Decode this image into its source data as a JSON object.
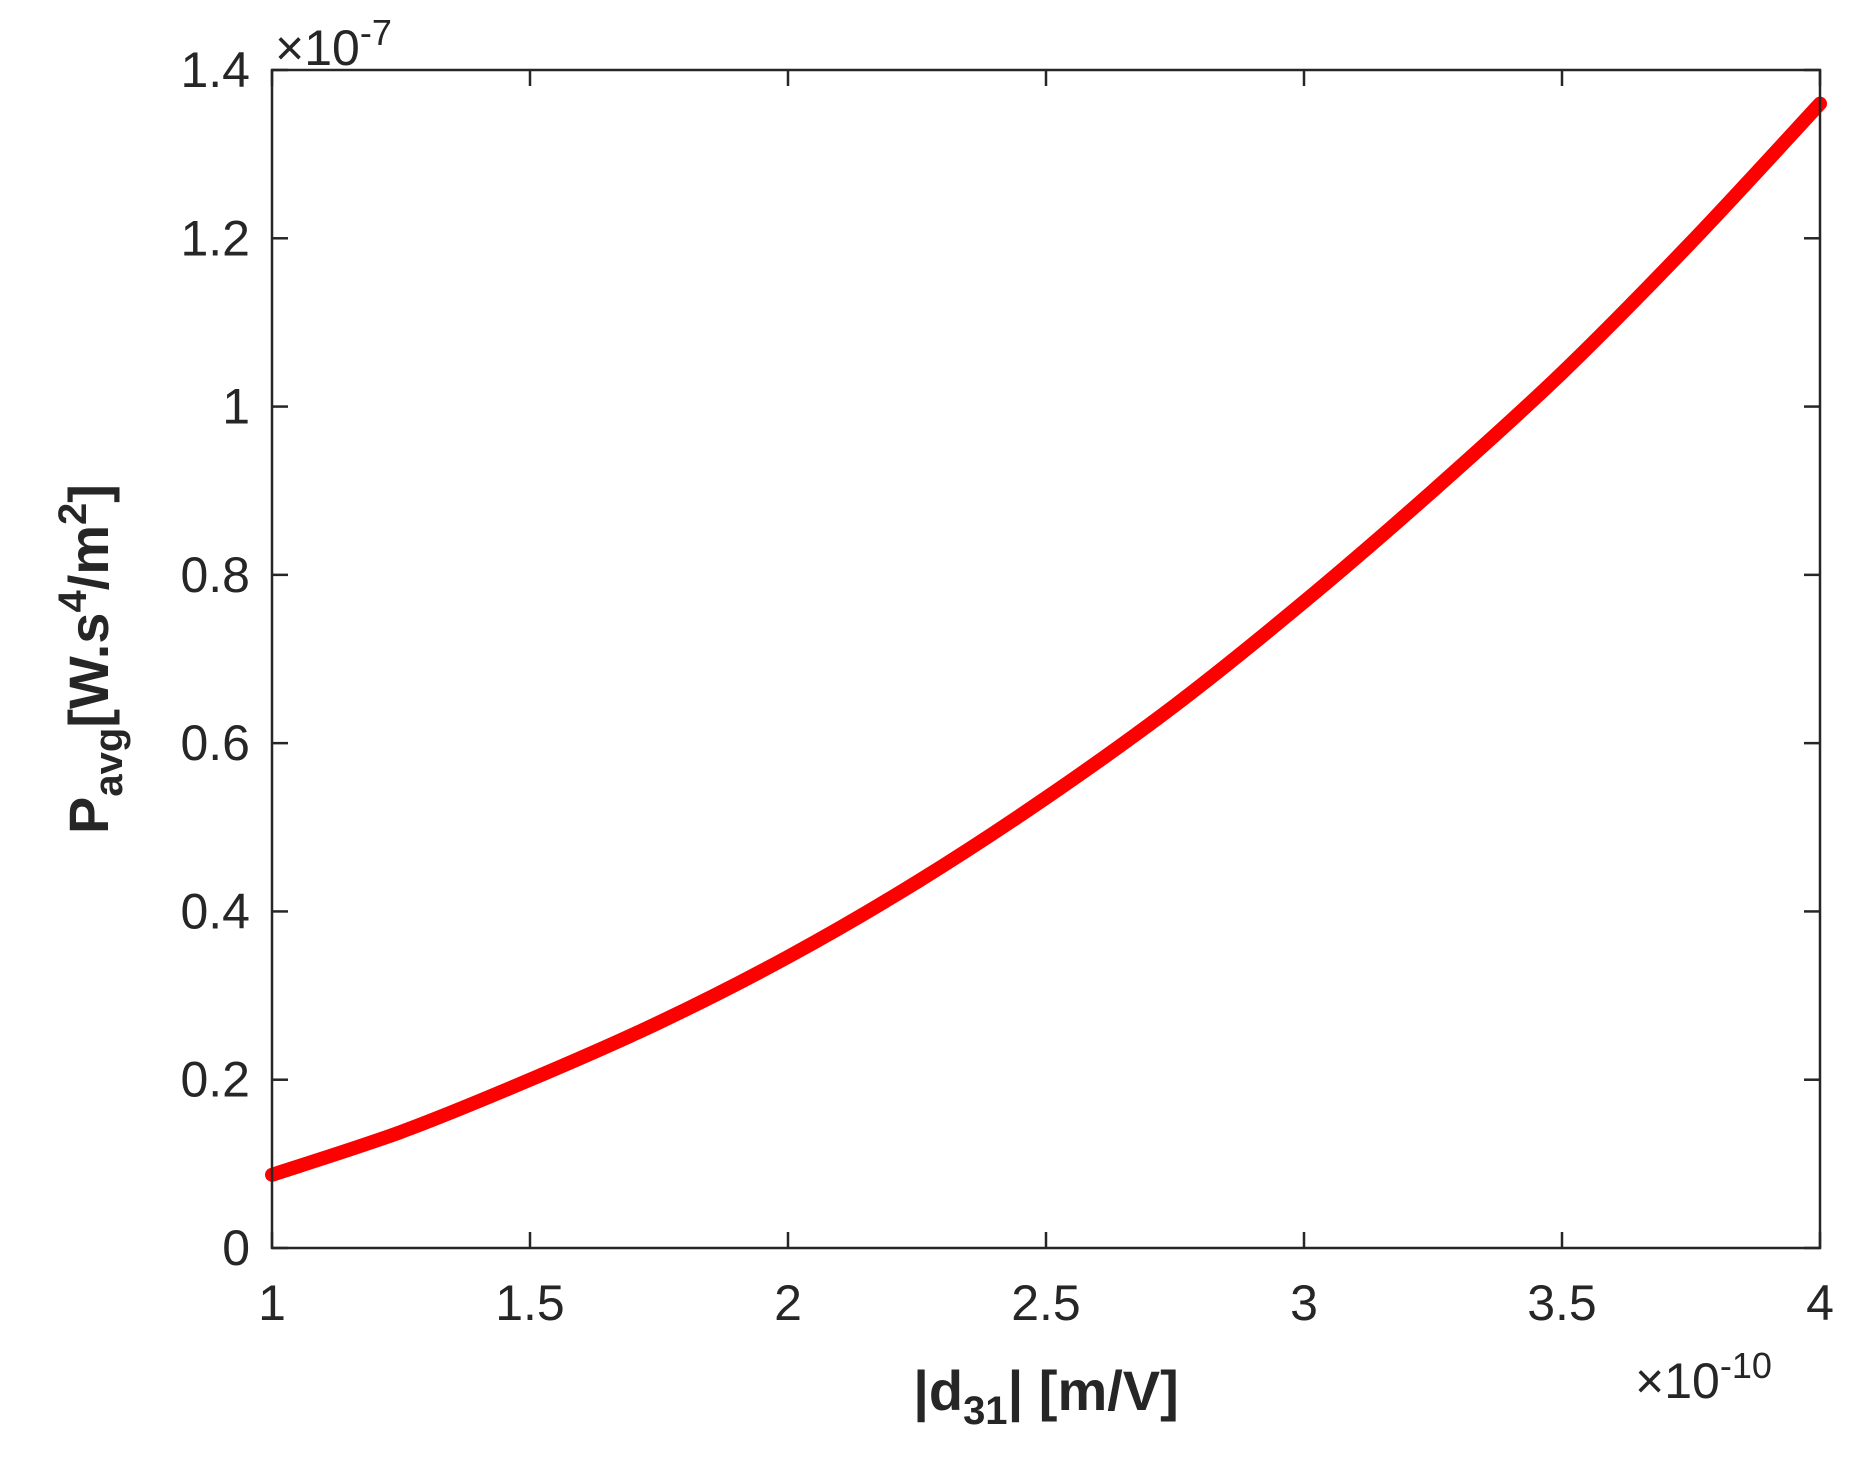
{
  "chart_data": {
    "type": "line",
    "title": "",
    "xlabel": {
      "bar_open": "|d",
      "sub": "31",
      "bar_close": "| [m/V]"
    },
    "ylabel": {
      "main": "P",
      "sub": "avg",
      "unit_open": "[W.s",
      "sup1": "4",
      "unit_mid": "/m",
      "sup2": "2",
      "unit_close": "]"
    },
    "x_exponent": {
      "times": "×",
      "base": "10",
      "power": "-10"
    },
    "y_exponent": {
      "times": "×",
      "base": "10",
      "power": "-7"
    },
    "xlim": [
      1,
      4
    ],
    "ylim": [
      0,
      1.4
    ],
    "x_ticks": [
      1,
      1.5,
      2,
      2.5,
      3,
      3.5,
      4
    ],
    "x_tick_labels": [
      "1",
      "1.5",
      "2",
      "2.5",
      "3",
      "3.5",
      "4"
    ],
    "y_ticks": [
      0,
      0.2,
      0.4,
      0.6,
      0.8,
      1,
      1.2,
      1.4
    ],
    "y_tick_labels": [
      "0",
      "0.2",
      "0.4",
      "0.6",
      "0.8",
      "1",
      "1.2",
      "1.4"
    ],
    "grid": false,
    "series": [
      {
        "color": "#ff0000",
        "x": [
          1,
          1.25,
          1.5,
          1.75,
          2,
          2.25,
          2.5,
          2.75,
          3,
          3.25,
          3.5,
          3.75,
          4
        ],
        "y": [
          0.087,
          0.138,
          0.2,
          0.268,
          0.346,
          0.435,
          0.535,
          0.645,
          0.768,
          0.9,
          1.04,
          1.195,
          1.36
        ]
      }
    ]
  }
}
